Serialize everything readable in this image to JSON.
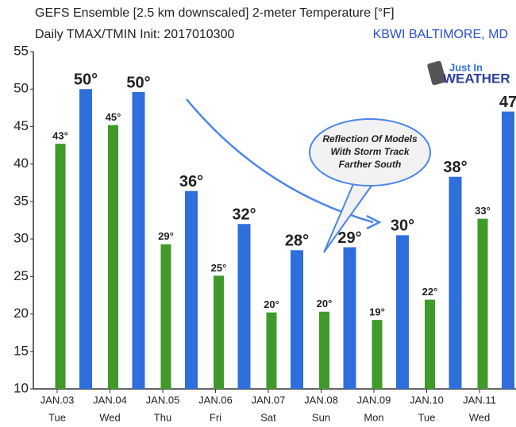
{
  "chart_data": {
    "type": "bar",
    "title": "GEFS Ensemble [2.5 km downscaled] 2-meter Temperature [°F]",
    "subtitle": "Daily TMAX/TMIN Init: 2017010300",
    "location": "KBWI BALTIMORE, MD",
    "logo": [
      "Just In",
      "WEATHER"
    ],
    "annotation": [
      "Reflection Of Models",
      "With Storm Track",
      "Farther South"
    ],
    "categories": [
      "JAN.03",
      "JAN.04",
      "JAN.05",
      "JAN.06",
      "JAN.07",
      "JAN.08",
      "JAN.09",
      "JAN.10",
      "JAN.11"
    ],
    "days": [
      "Tue",
      "Wed",
      "Thu",
      "Fri",
      "Sat",
      "Sun",
      "Mon",
      "Tue",
      "Wed"
    ],
    "series": [
      {
        "color": "#3f9a2a",
        "values": [
          42.7,
          45.2,
          29.3,
          25.1,
          20.2,
          20.3,
          19.2,
          21.9,
          32.7
        ],
        "value_labels": [
          "43°",
          "45°",
          "29°",
          "25°",
          "20°",
          "20°",
          "19°",
          "22°",
          "33°"
        ]
      },
      {
        "color": "#2f6fdc",
        "values": [
          50.0,
          49.6,
          36.4,
          32.0,
          28.5,
          28.9,
          30.5,
          38.3,
          47.0
        ],
        "value_labels": [
          "50°",
          "50°",
          "36°",
          "32°",
          "28°",
          "29°",
          "30°",
          "38°",
          "47"
        ]
      }
    ],
    "ylim": [
      10,
      55
    ],
    "yticks": [
      10,
      15,
      20,
      25,
      30,
      35,
      40,
      45,
      50,
      55
    ]
  }
}
